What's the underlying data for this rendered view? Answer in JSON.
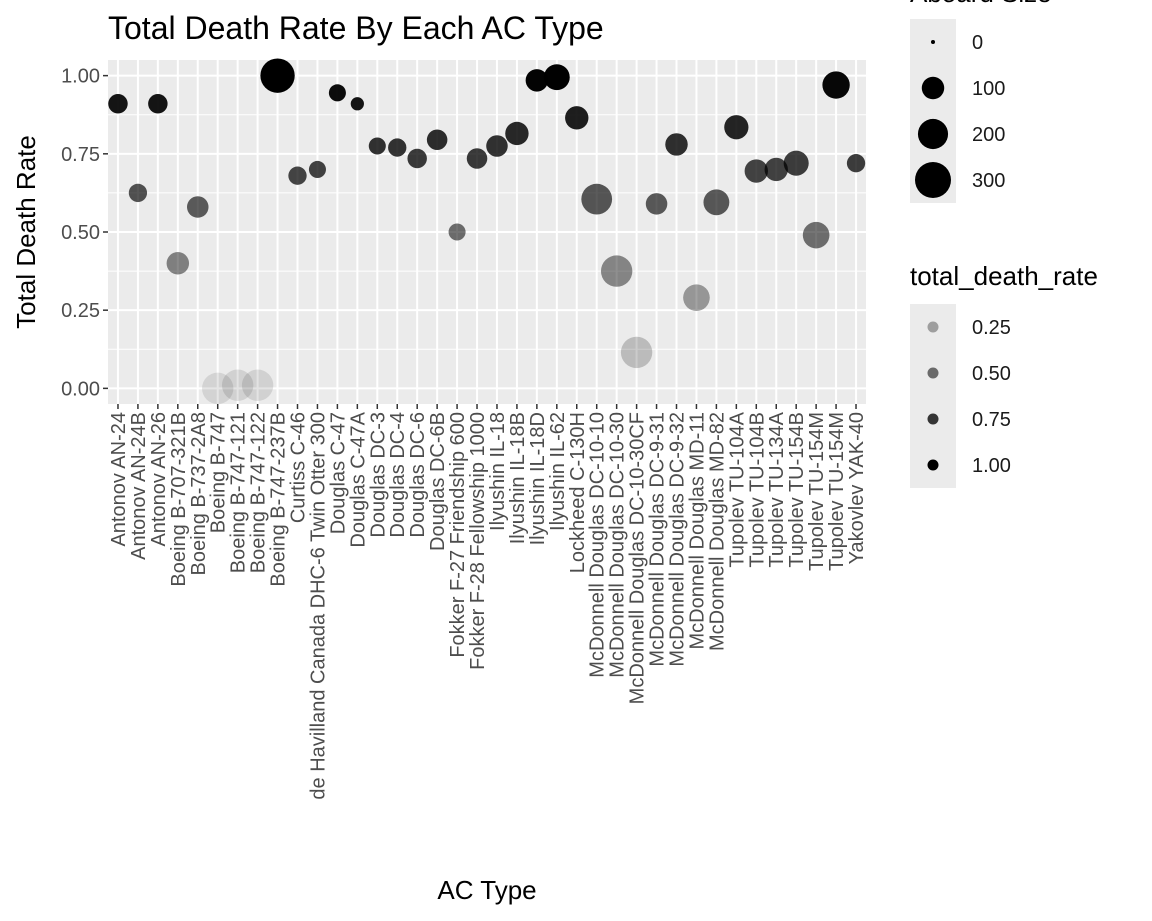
{
  "chart_data": {
    "type": "scatter",
    "title": "Total Death Rate By Each AC Type",
    "xlabel": "AC Type",
    "ylabel": "Total Death Rate",
    "ylim": [
      -0.05,
      1.05
    ],
    "y_ticks": [
      "0.00",
      "0.25",
      "0.50",
      "0.75",
      "1.00"
    ],
    "y_tick_values": [
      0,
      0.25,
      0.5,
      0.75,
      1.0
    ],
    "grid": true,
    "legend_position": "right",
    "categories": [
      "Antonov AN-24",
      "Antonov AN-24B",
      "Antonov AN-26",
      "Boeing B-707-321B",
      "Boeing B-737-2A8",
      "Boeing B-747",
      "Boeing B-747-121",
      "Boeing B-747-122",
      "Boeing B-747-237B",
      "Curtiss C-46",
      "de Havilland Canada DHC-6 Twin Otter 300",
      "Douglas C-47",
      "Douglas C-47A",
      "Douglas DC-3",
      "Douglas DC-4",
      "Douglas DC-6",
      "Douglas DC-6B",
      "Fokker F-27 Friendship 600",
      "Fokker F-28 Fellowship 1000",
      "Ilyushin IL-18",
      "Ilyushin IL-18B",
      "Ilyushin IL-18D",
      "Ilyushin IL-62",
      "Lockheed C-130H",
      "McDonnell Douglas DC-10-10",
      "McDonnell Douglas DC-10-30",
      "McDonnell Douglas DC-10-30CF",
      "McDonnell Douglas DC-9-31",
      "McDonnell Douglas DC-9-32",
      "McDonnell Douglas MD-11",
      "McDonnell Douglas MD-82",
      "Tupolev  TU-104A",
      "Tupolev  TU-104B",
      "Tupolev  TU-134A",
      "Tupolev  TU-154B",
      "Tupolev  TU-154M",
      "Tupolev TU-154M",
      "Yakovlev  YAK-40"
    ],
    "series": [
      {
        "values": [
          0.91,
          0.625,
          0.91,
          0.4,
          0.58,
          0.0,
          0.01,
          0.01,
          1.0,
          0.68,
          0.7,
          0.945,
          0.91,
          0.775,
          0.77,
          0.735,
          0.795,
          0.5,
          0.735,
          0.775,
          0.815,
          0.985,
          0.995,
          0.865,
          0.605,
          0.375,
          0.115,
          0.59,
          0.78,
          0.29,
          0.595,
          0.835,
          0.695,
          0.7,
          0.72,
          0.49,
          0.97,
          0.72
        ],
        "aboard": [
          70,
          60,
          70,
          100,
          90,
          220,
          220,
          220,
          270,
          60,
          50,
          50,
          25,
          50,
          60,
          70,
          80,
          50,
          80,
          90,
          110,
          100,
          140,
          110,
          210,
          220,
          220,
          90,
          100,
          150,
          140,
          120,
          110,
          110,
          130,
          150,
          160,
          60
        ]
      }
    ],
    "legends": [
      {
        "title": "Aboard Size",
        "labels": [
          "0",
          "100",
          "200",
          "300"
        ],
        "values": [
          0,
          100,
          200,
          300
        ]
      },
      {
        "title": "total_death_rate",
        "labels": [
          "0.25",
          "0.50",
          "0.75",
          "1.00"
        ],
        "values": [
          0.25,
          0.5,
          0.75,
          1.0
        ]
      }
    ]
  }
}
